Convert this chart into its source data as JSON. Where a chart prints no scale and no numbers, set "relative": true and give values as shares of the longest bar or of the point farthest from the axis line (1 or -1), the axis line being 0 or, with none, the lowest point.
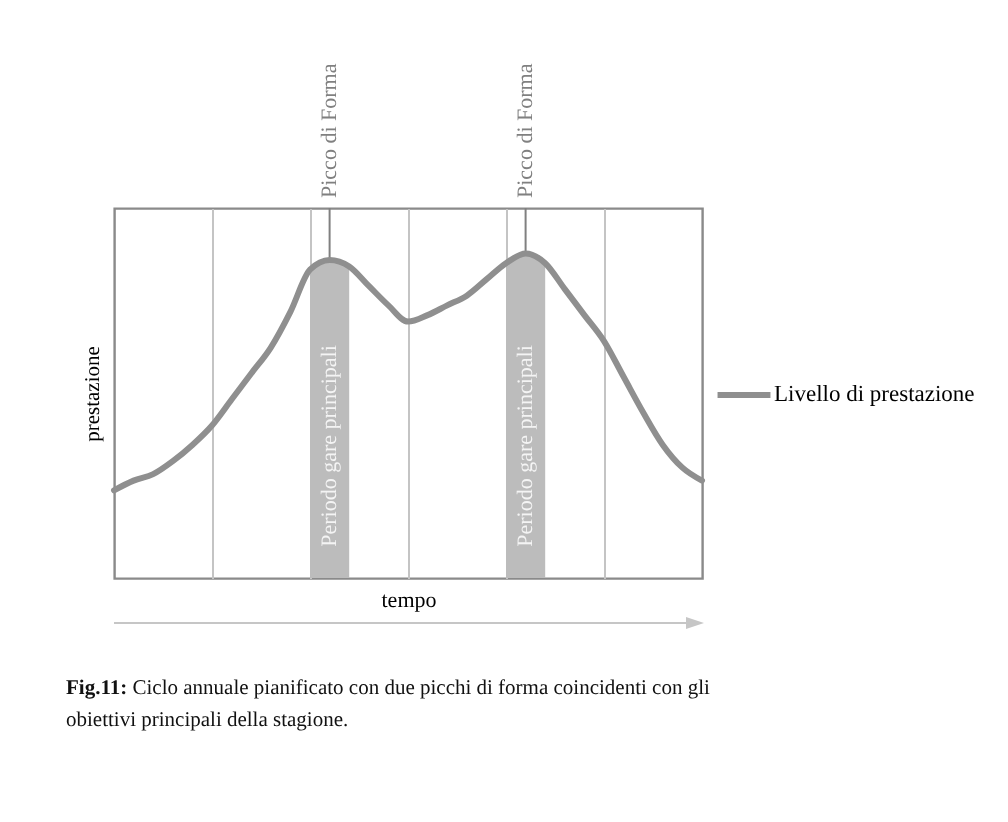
{
  "chart_data": {
    "type": "line",
    "categories": [
      null,
      null,
      null,
      null,
      null,
      null,
      null,
      null,
      null,
      null,
      null,
      null,
      null,
      null,
      null,
      null,
      null,
      null,
      null,
      null,
      null,
      null,
      null,
      null,
      null,
      null,
      null,
      null,
      null,
      null,
      null
    ],
    "series": [
      {
        "name": "Livello di prestazione",
        "color": "#8f8f8f",
        "values": [
          0.27,
          0.3,
          0.32,
          0.36,
          0.41,
          0.47,
          0.55,
          0.63,
          0.71,
          0.82,
          0.95,
          0.98,
          0.96,
          0.9,
          0.84,
          0.79,
          0.81,
          0.84,
          0.87,
          0.92,
          0.97,
          1.0,
          0.97,
          0.89,
          0.81,
          0.73,
          0.62,
          0.51,
          0.41,
          0.34,
          0.3
        ]
      },
      {
        "name": "Periodo gare principali",
        "type": "area",
        "color": "#bcbcbc",
        "values": [
          null,
          null,
          null,
          null,
          null,
          null,
          null,
          null,
          null,
          null,
          0.95,
          0.98,
          0.96,
          null,
          null,
          null,
          null,
          null,
          null,
          null,
          null,
          null,
          null,
          null,
          null,
          null,
          null,
          null,
          null,
          null,
          null
        ]
      },
      {
        "name": "Periodo gare principali",
        "type": "area",
        "color": "#bcbcbc",
        "values": [
          null,
          null,
          null,
          null,
          null,
          null,
          null,
          null,
          null,
          null,
          null,
          null,
          null,
          null,
          null,
          null,
          null,
          null,
          null,
          null,
          0.97,
          1.0,
          0.97,
          null,
          null,
          null,
          null,
          null,
          null,
          null,
          null
        ]
      }
    ],
    "relative": true,
    "xlabel": "tempo",
    "ylabel": "prestazione",
    "grid": "x",
    "tick_labels": false,
    "legend": "right",
    "marker": "none",
    "line_style": "solid",
    "annotations": [
      {
        "text": "Picco di Forma",
        "y": 0.98
      },
      {
        "text": "Picco di Forma",
        "y": 1.0
      },
      "Fig.11: Ciclo annuale pianificato con due picchi di forma coincidenti con gli obiettivi principali della stagione."
    ]
  }
}
